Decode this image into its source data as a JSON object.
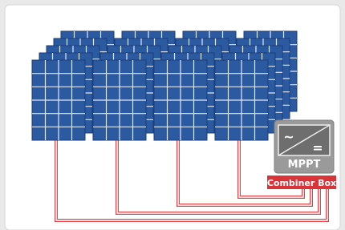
{
  "inverter": {
    "ac_symbol": "~",
    "dc_symbol": "=",
    "label": "MPPT"
  },
  "combiner": {
    "label": "Combiner Box"
  }
}
